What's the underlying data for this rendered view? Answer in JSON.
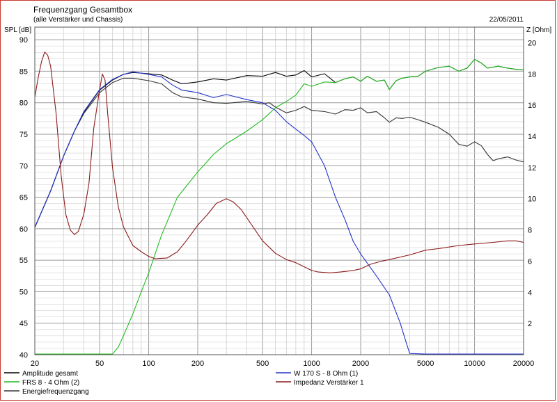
{
  "chart_data": {
    "type": "line",
    "title": "Frequenzgang Gesamtbox",
    "subtitle": "(alle Verstärker und Chassis)",
    "date": "22/05/2011",
    "ylabel_left": "SPL [dB]",
    "ylabel_right": "Z [Ohm]",
    "x_scale": "log",
    "xlim": [
      20,
      20000
    ],
    "ylim_left": [
      40,
      92
    ],
    "ylim_right": [
      0,
      21
    ],
    "x_ticks": [
      "20",
      "50",
      "100",
      "200",
      "500",
      "1000",
      "2000",
      "5000",
      "10000",
      "20000"
    ],
    "y_ticks_left": [
      "40",
      "45",
      "50",
      "55",
      "60",
      "65",
      "70",
      "75",
      "80",
      "85",
      "90"
    ],
    "y_ticks_right": [
      "2",
      "4",
      "6",
      "8",
      "10",
      "12",
      "14",
      "16",
      "18",
      "20"
    ],
    "grid": true,
    "legend_position": "bottom",
    "series": [
      {
        "name": "Amplitude gesamt",
        "color": "#000000",
        "axis": "left",
        "points": [
          [
            20,
            60.2
          ],
          [
            25,
            66
          ],
          [
            30,
            71.5
          ],
          [
            35,
            75.5
          ],
          [
            40,
            78.5
          ],
          [
            50,
            82
          ],
          [
            60,
            83.6
          ],
          [
            70,
            84.5
          ],
          [
            80,
            84.8
          ],
          [
            100,
            84.6
          ],
          [
            120,
            84.4
          ],
          [
            140,
            83.6
          ],
          [
            160,
            83
          ],
          [
            200,
            83.3
          ],
          [
            250,
            83.8
          ],
          [
            300,
            83.6
          ],
          [
            400,
            84.3
          ],
          [
            500,
            84.2
          ],
          [
            600,
            84.8
          ],
          [
            700,
            84.2
          ],
          [
            800,
            84.4
          ],
          [
            900,
            85.1
          ],
          [
            1000,
            84.1
          ],
          [
            1200,
            84.6
          ],
          [
            1400,
            83.2
          ],
          [
            1600,
            83.8
          ],
          [
            1800,
            84.1
          ],
          [
            2000,
            83.4
          ],
          [
            2200,
            84.2
          ],
          [
            2500,
            83.4
          ],
          [
            2800,
            83.6
          ],
          [
            3000,
            82.1
          ],
          [
            3300,
            83.5
          ],
          [
            3600,
            83.9
          ],
          [
            4000,
            84.1
          ],
          [
            4500,
            84.2
          ],
          [
            5000,
            85
          ],
          [
            6000,
            85.6
          ],
          [
            7000,
            85.8
          ],
          [
            8000,
            85
          ],
          [
            9000,
            85.5
          ],
          [
            10000,
            86.9
          ],
          [
            11000,
            86.3
          ],
          [
            12000,
            85.5
          ],
          [
            14000,
            85.8
          ],
          [
            16000,
            85.5
          ],
          [
            18000,
            85.3
          ],
          [
            20000,
            85.2
          ]
        ]
      },
      {
        "name": "W 170 S - 8 Ohm (1)",
        "color": "#2233cc",
        "axis": "left",
        "points": [
          [
            20,
            60.2
          ],
          [
            25,
            66
          ],
          [
            30,
            71.5
          ],
          [
            35,
            75.5
          ],
          [
            40,
            78.6
          ],
          [
            50,
            82.1
          ],
          [
            60,
            83.7
          ],
          [
            70,
            84.5
          ],
          [
            80,
            84.9
          ],
          [
            100,
            84.5
          ],
          [
            120,
            84.1
          ],
          [
            140,
            82.8
          ],
          [
            160,
            82
          ],
          [
            200,
            81.6
          ],
          [
            250,
            80.8
          ],
          [
            300,
            81.3
          ],
          [
            400,
            80.5
          ],
          [
            500,
            80
          ],
          [
            600,
            78.8
          ],
          [
            700,
            77
          ],
          [
            800,
            75.8
          ],
          [
            900,
            74.8
          ],
          [
            1000,
            73.8
          ],
          [
            1200,
            70
          ],
          [
            1400,
            65
          ],
          [
            1600,
            61.5
          ],
          [
            1800,
            58
          ],
          [
            2000,
            56
          ],
          [
            2500,
            52.5
          ],
          [
            3000,
            49.5
          ],
          [
            3500,
            45
          ],
          [
            3800,
            42
          ],
          [
            4000,
            40.2
          ],
          [
            5000,
            40.1
          ],
          [
            20000,
            40.1
          ]
        ]
      },
      {
        "name": "FRS 8 - 4 Ohm (2)",
        "color": "#22bb22",
        "axis": "left",
        "points": [
          [
            20,
            40.1
          ],
          [
            60,
            40.1
          ],
          [
            65,
            41.2
          ],
          [
            70,
            43
          ],
          [
            80,
            46.5
          ],
          [
            90,
            50
          ],
          [
            100,
            53
          ],
          [
            120,
            59
          ],
          [
            150,
            65
          ],
          [
            200,
            69
          ],
          [
            250,
            71.8
          ],
          [
            300,
            73.5
          ],
          [
            400,
            75.5
          ],
          [
            500,
            77.3
          ],
          [
            600,
            79.2
          ],
          [
            700,
            80.2
          ],
          [
            800,
            81.2
          ],
          [
            900,
            83
          ],
          [
            1000,
            82.6
          ],
          [
            1200,
            83.3
          ],
          [
            1400,
            83.2
          ],
          [
            1600,
            83.8
          ],
          [
            1800,
            84.1
          ],
          [
            2000,
            83.4
          ],
          [
            2200,
            84.2
          ],
          [
            2500,
            83.4
          ],
          [
            2800,
            83.6
          ],
          [
            3000,
            82.1
          ],
          [
            3300,
            83.5
          ],
          [
            3600,
            83.9
          ],
          [
            4000,
            84.1
          ],
          [
            4500,
            84.2
          ],
          [
            5000,
            85
          ],
          [
            6000,
            85.6
          ],
          [
            7000,
            85.8
          ],
          [
            8000,
            85
          ],
          [
            9000,
            85.5
          ],
          [
            10000,
            86.9
          ],
          [
            11000,
            86.3
          ],
          [
            12000,
            85.5
          ],
          [
            14000,
            85.8
          ],
          [
            16000,
            85.5
          ],
          [
            18000,
            85.3
          ],
          [
            20000,
            85.2
          ]
        ]
      },
      {
        "name": "Impedanz Verstärker 1",
        "color": "#8b1a1a",
        "axis": "right",
        "points": [
          [
            20,
            16.5
          ],
          [
            21,
            17.8
          ],
          [
            22,
            18.8
          ],
          [
            23,
            19.4
          ],
          [
            24,
            19.2
          ],
          [
            25,
            18.5
          ],
          [
            27,
            15.5
          ],
          [
            29,
            11.5
          ],
          [
            31,
            9
          ],
          [
            33,
            8
          ],
          [
            35,
            7.7
          ],
          [
            37,
            7.9
          ],
          [
            40,
            9
          ],
          [
            43,
            11
          ],
          [
            46,
            14.5
          ],
          [
            50,
            17
          ],
          [
            52,
            18
          ],
          [
            54,
            17.6
          ],
          [
            56,
            15.5
          ],
          [
            60,
            12
          ],
          [
            65,
            9.5
          ],
          [
            70,
            8.2
          ],
          [
            80,
            7
          ],
          [
            90,
            6.6
          ],
          [
            100,
            6.3
          ],
          [
            110,
            6.15
          ],
          [
            130,
            6.2
          ],
          [
            150,
            6.6
          ],
          [
            170,
            7.3
          ],
          [
            200,
            8.3
          ],
          [
            230,
            9
          ],
          [
            260,
            9.7
          ],
          [
            300,
            10
          ],
          [
            330,
            9.8
          ],
          [
            370,
            9.3
          ],
          [
            430,
            8.3
          ],
          [
            500,
            7.3
          ],
          [
            600,
            6.5
          ],
          [
            700,
            6.1
          ],
          [
            800,
            5.9
          ],
          [
            1000,
            5.4
          ],
          [
            1100,
            5.3
          ],
          [
            1300,
            5.25
          ],
          [
            1500,
            5.3
          ],
          [
            1800,
            5.4
          ],
          [
            2000,
            5.5
          ],
          [
            2300,
            5.8
          ],
          [
            2700,
            6
          ],
          [
            3000,
            6.1
          ],
          [
            4000,
            6.4
          ],
          [
            5000,
            6.7
          ],
          [
            6000,
            6.8
          ],
          [
            8000,
            7
          ],
          [
            10000,
            7.1
          ],
          [
            13000,
            7.2
          ],
          [
            16000,
            7.3
          ],
          [
            18000,
            7.3
          ],
          [
            20000,
            7.2
          ]
        ]
      },
      {
        "name": "Energiefrequenzgang",
        "color": "#333333",
        "axis": "left",
        "points": [
          [
            20,
            60.2
          ],
          [
            25,
            66
          ],
          [
            30,
            71.5
          ],
          [
            35,
            75.5
          ],
          [
            40,
            78.3
          ],
          [
            50,
            81.6
          ],
          [
            60,
            83.2
          ],
          [
            70,
            83.9
          ],
          [
            80,
            83.9
          ],
          [
            100,
            83.5
          ],
          [
            120,
            83
          ],
          [
            140,
            81.6
          ],
          [
            160,
            80.9
          ],
          [
            200,
            80.6
          ],
          [
            250,
            80
          ],
          [
            300,
            79.9
          ],
          [
            400,
            80.2
          ],
          [
            500,
            79.8
          ],
          [
            550,
            80
          ],
          [
            600,
            79.3
          ],
          [
            700,
            78.4
          ],
          [
            800,
            78.8
          ],
          [
            900,
            79.4
          ],
          [
            1000,
            78.8
          ],
          [
            1200,
            78.6
          ],
          [
            1400,
            78.2
          ],
          [
            1600,
            78.9
          ],
          [
            1800,
            78.8
          ],
          [
            2000,
            79.2
          ],
          [
            2200,
            78.4
          ],
          [
            2500,
            78.6
          ],
          [
            2800,
            77.6
          ],
          [
            3000,
            76.9
          ],
          [
            3300,
            77.6
          ],
          [
            3600,
            77.5
          ],
          [
            4000,
            77.7
          ],
          [
            4500,
            77.3
          ],
          [
            5000,
            76.9
          ],
          [
            6000,
            76.1
          ],
          [
            7000,
            75
          ],
          [
            8000,
            73.4
          ],
          [
            9000,
            73.1
          ],
          [
            10000,
            73.8
          ],
          [
            11000,
            73.2
          ],
          [
            12000,
            71.8
          ],
          [
            13000,
            70.8
          ],
          [
            14000,
            71.1
          ],
          [
            16000,
            71.4
          ],
          [
            18000,
            70.9
          ],
          [
            20000,
            70.6
          ]
        ]
      }
    ]
  }
}
